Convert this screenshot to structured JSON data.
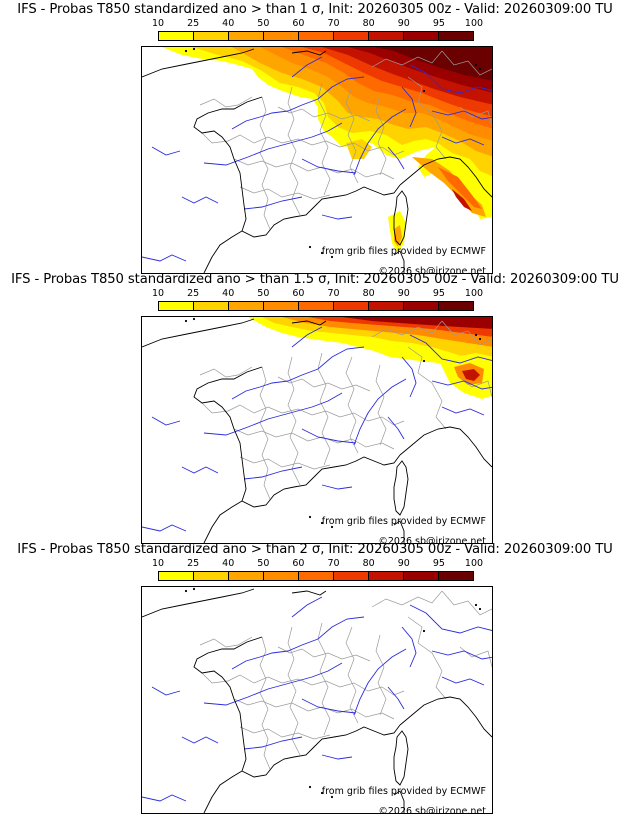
{
  "panels": [
    {
      "title": "IFS - Probas T850  standardized ano > than 1 σ, Init: 20260305 00z - Valid: 20260309:00 TU",
      "intensity_extent": "large"
    },
    {
      "title": "IFS - Probas T850  standardized ano > than 1.5 σ, Init: 20260305 00z - Valid: 20260309:00 TU",
      "intensity_extent": "medium"
    },
    {
      "title": "IFS - Probas T850  standardized ano > than 2 σ, Init: 20260305 00z - Valid: 20260309:00 TU",
      "intensity_extent": "none"
    }
  ],
  "colorbar": {
    "ticks": [
      "10",
      "25",
      "40",
      "50",
      "60",
      "70",
      "80",
      "90",
      "95",
      "100"
    ],
    "colors": [
      "#ffff00",
      "#ffd300",
      "#ffa500",
      "#ff8c00",
      "#ff6a00",
      "#ee3a00",
      "#c41200",
      "#9a0000",
      "#6b0000"
    ]
  },
  "credits": {
    "source": "from grib files provided by ECMWF",
    "copyright": "©2026 sb@irizone.net"
  },
  "map_colors": {
    "coast": "#000000",
    "rivers": "#2b2bdc",
    "admin": "#9a9a9a"
  }
}
